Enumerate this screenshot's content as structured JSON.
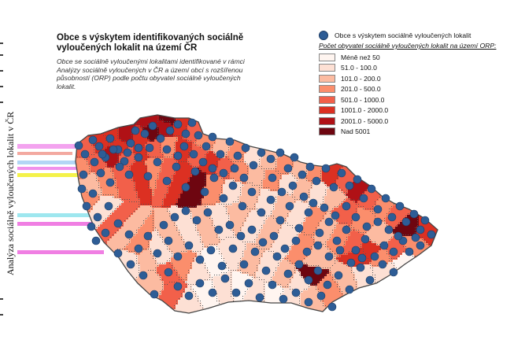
{
  "map": {
    "title": "Obce s výskytem identifikovaných sociálně vyloučených lokalit na území ČR",
    "description": "Obce se sociálně vyloučenými lokalitami identifikované v rámci Analýzy sociálně vyloučených v ČR a území obcí s rozšířenou působností (ORP) podle počtu obyvatel sociálně vyloučených lokalit.",
    "side_label": "Analýza sociálně vyloučených lokalit v ČR",
    "region": "Česká republika"
  },
  "legend": {
    "point_label": "Obce s výskytem sociálně vyloučených lokalit",
    "subtitle": "Počet obyvatel sociálně vyloučených lokalit na území ORP:",
    "classes": [
      {
        "label": "Méně než 50",
        "color": "#fff5f0"
      },
      {
        "label": "51.0 - 100.0",
        "color": "#fde0d4"
      },
      {
        "label": "101.0 - 200.0",
        "color": "#fcbba1"
      },
      {
        "label": "201.0 - 500.0",
        "color": "#fb8e6c"
      },
      {
        "label": "501.0 - 1000.0",
        "color": "#f2604a"
      },
      {
        "label": "1001.0 - 2000.0",
        "color": "#dc3022"
      },
      {
        "label": "2001.0 - 5000.0",
        "color": "#b01116"
      },
      {
        "label": "Nad 5001",
        "color": "#6e0610"
      }
    ],
    "point_color": "#2e5d96",
    "outline_color": "#555555"
  }
}
